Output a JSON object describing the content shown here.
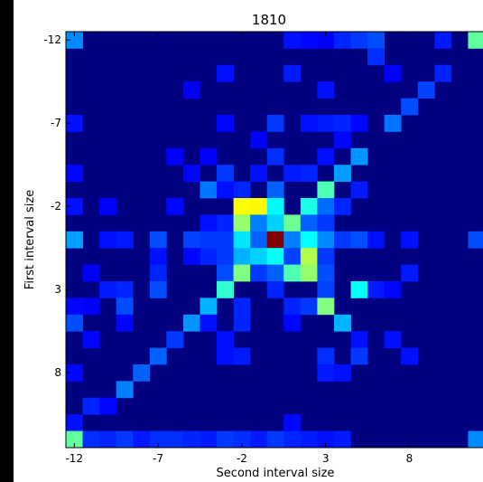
{
  "chart_data": {
    "type": "heatmap",
    "title": "1810",
    "xlabel": "Second interval size",
    "ylabel": "First interval size",
    "x_range": [
      -12,
      12
    ],
    "y_range": [
      -12,
      12
    ],
    "y_axis_inverted": true,
    "colormap": "jet",
    "x_ticks": [
      -12,
      -7,
      -2,
      3,
      8
    ],
    "y_ticks": [
      -12,
      -7,
      -2,
      3,
      8
    ],
    "cells": [
      [
        -12,
        -12,
        0.26
      ],
      [
        12,
        -12,
        0.47
      ],
      [
        1,
        -12,
        0.14
      ],
      [
        2,
        -12,
        0.13
      ],
      [
        3,
        -12,
        0.12
      ],
      [
        4,
        -12,
        0.16
      ],
      [
        5,
        -12,
        0.18
      ],
      [
        6,
        -12,
        0.2
      ],
      [
        10,
        -12,
        0.15
      ],
      [
        6,
        -11,
        0.17
      ],
      [
        -3,
        -10,
        0.14
      ],
      [
        1,
        -10,
        0.15
      ],
      [
        7,
        -10,
        0.12
      ],
      [
        10,
        -10,
        0.16
      ],
      [
        9,
        -9,
        0.19
      ],
      [
        3,
        -9,
        0.14
      ],
      [
        -5,
        -9,
        0.12
      ],
      [
        8,
        -8,
        0.2
      ],
      [
        -12,
        -7,
        0.14
      ],
      [
        0,
        -7,
        0.18
      ],
      [
        2,
        -7,
        0.14
      ],
      [
        3,
        -7,
        0.15
      ],
      [
        4,
        -7,
        0.16
      ],
      [
        5,
        -7,
        0.13
      ],
      [
        7,
        -7,
        0.24
      ],
      [
        -3,
        -7,
        0.13
      ],
      [
        -1,
        -6,
        0.12
      ],
      [
        4,
        -6,
        0.13
      ],
      [
        -4,
        -5,
        0.12
      ],
      [
        0,
        -5,
        0.17
      ],
      [
        3,
        -5,
        0.14
      ],
      [
        5,
        -5,
        0.27
      ],
      [
        -6,
        -5,
        0.12
      ],
      [
        -5,
        -4,
        0.13
      ],
      [
        -3,
        -4,
        0.18
      ],
      [
        -1,
        -4,
        0.14
      ],
      [
        1,
        -4,
        0.15
      ],
      [
        2,
        -4,
        0.16
      ],
      [
        4,
        -4,
        0.28
      ],
      [
        -12,
        -4,
        0.13
      ],
      [
        -4,
        -3,
        0.24
      ],
      [
        -2,
        -3,
        0.16
      ],
      [
        0,
        -3,
        0.22
      ],
      [
        3,
        -3,
        0.45
      ],
      [
        -3,
        -3,
        0.14
      ],
      [
        5,
        -3,
        0.15
      ],
      [
        -2,
        -2,
        0.62
      ],
      [
        -1,
        -2,
        0.63
      ],
      [
        0,
        -2,
        0.37
      ],
      [
        2,
        -2,
        0.4
      ],
      [
        3,
        -2,
        0.23
      ],
      [
        4,
        -2,
        0.16
      ],
      [
        -12,
        -2,
        0.14
      ],
      [
        -10,
        -2,
        0.12
      ],
      [
        -6,
        -2,
        0.13
      ],
      [
        -3,
        -1,
        0.16
      ],
      [
        -2,
        -1,
        0.52
      ],
      [
        -1,
        -1,
        0.25
      ],
      [
        0,
        -1,
        0.33
      ],
      [
        1,
        -1,
        0.48
      ],
      [
        2,
        -1,
        0.22
      ],
      [
        3,
        -1,
        0.18
      ],
      [
        -4,
        -1,
        0.14
      ],
      [
        -12,
        0,
        0.28
      ],
      [
        12,
        0,
        0.2
      ],
      [
        -9,
        0,
        0.15
      ],
      [
        -10,
        0,
        0.14
      ],
      [
        -7,
        0,
        0.2
      ],
      [
        -5,
        0,
        0.19
      ],
      [
        -4,
        0,
        0.18
      ],
      [
        -3,
        0,
        0.18
      ],
      [
        -2,
        0,
        0.35
      ],
      [
        -1,
        0,
        0.22
      ],
      [
        0,
        0,
        1.0
      ],
      [
        1,
        0,
        0.25
      ],
      [
        2,
        0,
        0.38
      ],
      [
        3,
        0,
        0.26
      ],
      [
        4,
        0,
        0.18
      ],
      [
        5,
        0,
        0.2
      ],
      [
        6,
        0,
        0.14
      ],
      [
        8,
        0,
        0.14
      ],
      [
        -4,
        1,
        0.16
      ],
      [
        -3,
        1,
        0.18
      ],
      [
        -2,
        1,
        0.3
      ],
      [
        -1,
        1,
        0.33
      ],
      [
        0,
        1,
        0.38
      ],
      [
        1,
        1,
        0.19
      ],
      [
        2,
        1,
        0.55
      ],
      [
        3,
        1,
        0.18
      ],
      [
        -7,
        1,
        0.14
      ],
      [
        -5,
        1,
        0.13
      ],
      [
        -3,
        2,
        0.2
      ],
      [
        -2,
        2,
        0.5
      ],
      [
        -1,
        2,
        0.18
      ],
      [
        0,
        2,
        0.22
      ],
      [
        1,
        2,
        0.45
      ],
      [
        2,
        2,
        0.52
      ],
      [
        3,
        2,
        0.2
      ],
      [
        -11,
        2,
        0.12
      ],
      [
        -7,
        2,
        0.16
      ],
      [
        8,
        2,
        0.15
      ],
      [
        -7,
        3,
        0.2
      ],
      [
        -10,
        3,
        0.15
      ],
      [
        -9,
        3,
        0.16
      ],
      [
        -3,
        3,
        0.42
      ],
      [
        0,
        3,
        0.16
      ],
      [
        3,
        3,
        0.19
      ],
      [
        5,
        3,
        0.38
      ],
      [
        6,
        3,
        0.15
      ],
      [
        7,
        3,
        0.13
      ],
      [
        -4,
        4,
        0.3
      ],
      [
        -2,
        4,
        0.16
      ],
      [
        1,
        4,
        0.16
      ],
      [
        2,
        4,
        0.18
      ],
      [
        3,
        4,
        0.5
      ],
      [
        -9,
        4,
        0.2
      ],
      [
        -12,
        4,
        0.13
      ],
      [
        -11,
        4,
        0.12
      ],
      [
        -5,
        5,
        0.27
      ],
      [
        4,
        5,
        0.3
      ],
      [
        -12,
        5,
        0.2
      ],
      [
        -9,
        5,
        0.13
      ],
      [
        -4,
        5,
        0.14
      ],
      [
        -2,
        5,
        0.16
      ],
      [
        1,
        5,
        0.13
      ],
      [
        -6,
        6,
        0.18
      ],
      [
        -3,
        6,
        0.14
      ],
      [
        5,
        6,
        0.14
      ],
      [
        7,
        6,
        0.14
      ],
      [
        -11,
        6,
        0.13
      ],
      [
        -7,
        7,
        0.22
      ],
      [
        -3,
        7,
        0.14
      ],
      [
        -2,
        7,
        0.15
      ],
      [
        3,
        7,
        0.17
      ],
      [
        5,
        7,
        0.18
      ],
      [
        8,
        7,
        0.14
      ],
      [
        -8,
        8,
        0.22
      ],
      [
        3,
        8,
        0.15
      ],
      [
        4,
        8,
        0.14
      ],
      [
        -12,
        8,
        0.13
      ],
      [
        -9,
        9,
        0.25
      ],
      [
        -11,
        10,
        0.16
      ],
      [
        -10,
        10,
        0.13
      ],
      [
        -12,
        11,
        0.14
      ],
      [
        1,
        11,
        0.13
      ],
      [
        -12,
        12,
        0.47
      ],
      [
        12,
        12,
        0.26
      ],
      [
        -11,
        12,
        0.17
      ],
      [
        -10,
        12,
        0.16
      ],
      [
        -9,
        12,
        0.18
      ],
      [
        -8,
        12,
        0.15
      ],
      [
        -7,
        12,
        0.17
      ],
      [
        -6,
        12,
        0.17
      ],
      [
        -5,
        12,
        0.16
      ],
      [
        -4,
        12,
        0.15
      ],
      [
        -3,
        12,
        0.18
      ],
      [
        -2,
        12,
        0.17
      ],
      [
        -1,
        12,
        0.15
      ],
      [
        0,
        12,
        0.18
      ],
      [
        1,
        12,
        0.16
      ],
      [
        2,
        12,
        0.15
      ],
      [
        3,
        12,
        0.14
      ],
      [
        4,
        12,
        0.15
      ]
    ]
  }
}
